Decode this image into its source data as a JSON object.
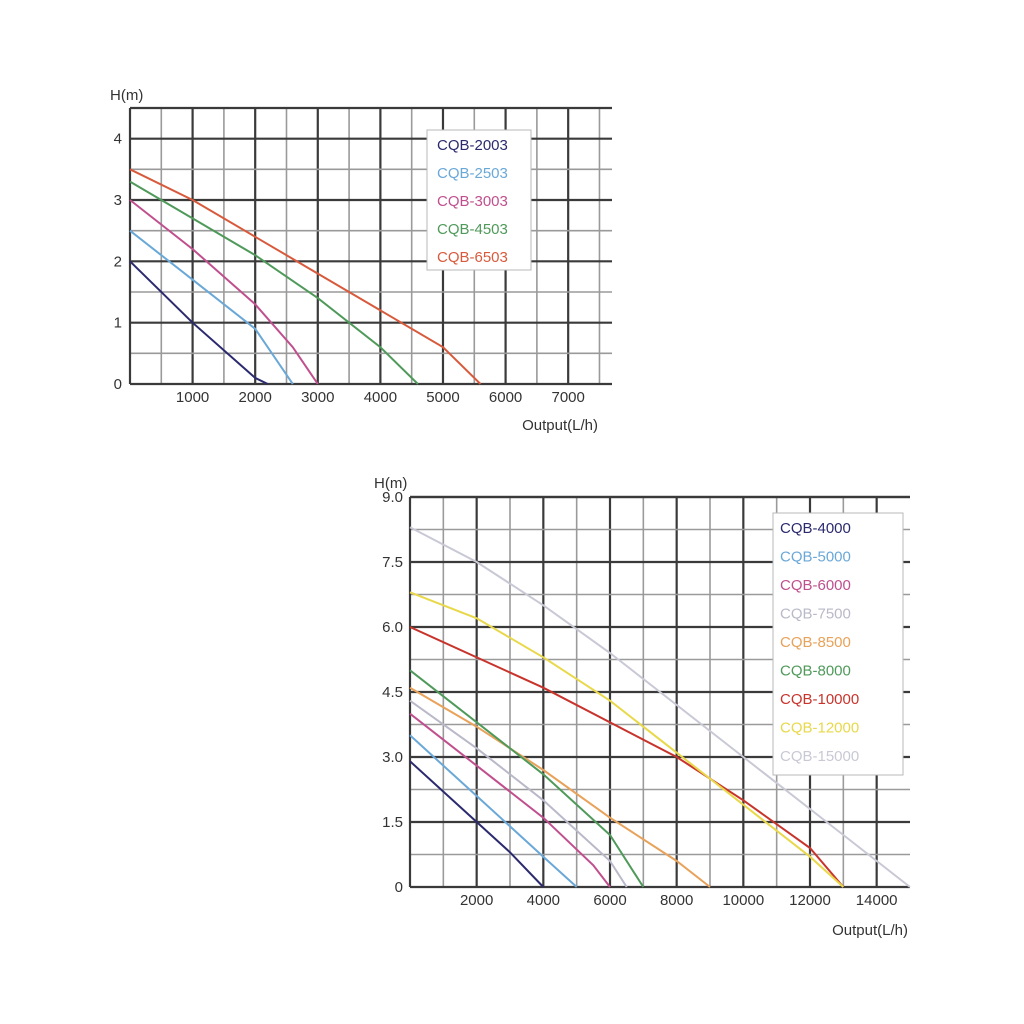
{
  "chart_data": [
    {
      "type": "line",
      "ylabel": "H(m)",
      "xlabel": "Output(L/h)",
      "xlim": [
        0,
        7700
      ],
      "ylim": [
        0,
        4.5
      ],
      "xticks": [
        1000,
        2000,
        3000,
        4000,
        5000,
        6000,
        7000
      ],
      "xtick_labels": [
        "1000",
        "2000",
        "3000",
        "4000",
        "5000",
        "6000",
        "7000"
      ],
      "yticks": [
        0,
        1,
        2,
        3,
        4
      ],
      "ytick_labels": [
        "0",
        "1",
        "2",
        "3",
        "4"
      ],
      "grid": true,
      "legend_position": "top-right",
      "series": [
        {
          "name": "CQB-2003",
          "color": "#2b2a6e",
          "x": [
            0,
            1000,
            2000,
            2200
          ],
          "y": [
            2.0,
            1.0,
            0.1,
            0
          ]
        },
        {
          "name": "CQB-2503",
          "color": "#6aa8d8",
          "x": [
            0,
            1000,
            2000,
            2600
          ],
          "y": [
            2.5,
            1.7,
            0.9,
            0
          ]
        },
        {
          "name": "CQB-3003",
          "color": "#c04f8e",
          "x": [
            0,
            1000,
            2000,
            2600,
            3000
          ],
          "y": [
            3.0,
            2.2,
            1.3,
            0.6,
            0
          ]
        },
        {
          "name": "CQB-4503",
          "color": "#4f9a5a",
          "x": [
            0,
            1000,
            2000,
            3000,
            4000,
            4600
          ],
          "y": [
            3.3,
            2.7,
            2.1,
            1.4,
            0.6,
            0
          ]
        },
        {
          "name": "CQB-6503",
          "color": "#d85a3c",
          "x": [
            0,
            1000,
            2000,
            3000,
            4000,
            5000,
            5600
          ],
          "y": [
            3.5,
            3.0,
            2.4,
            1.8,
            1.2,
            0.6,
            0
          ]
        }
      ]
    },
    {
      "type": "line",
      "ylabel": "H(m)",
      "xlabel": "Output(L/h)",
      "xlim": [
        0,
        15000
      ],
      "ylim": [
        0,
        9.0
      ],
      "xticks": [
        2000,
        4000,
        6000,
        8000,
        10000,
        12000,
        14000
      ],
      "xtick_labels": [
        "2000",
        "4000",
        "6000",
        "8000",
        "10000",
        "12000",
        "14000"
      ],
      "yticks": [
        0,
        1.5,
        3.0,
        4.5,
        6.0,
        7.5,
        9.0
      ],
      "ytick_labels": [
        "0",
        "1.5",
        "3.0",
        "4.5",
        "6.0",
        "7.5",
        "9.0"
      ],
      "grid": true,
      "legend_position": "top-right",
      "series": [
        {
          "name": "CQB-4000",
          "color": "#2b2a6e",
          "x": [
            0,
            2000,
            3000,
            4000
          ],
          "y": [
            2.9,
            1.5,
            0.8,
            0
          ]
        },
        {
          "name": "CQB-5000",
          "color": "#6aa8d8",
          "x": [
            0,
            2000,
            4000,
            5000
          ],
          "y": [
            3.5,
            2.1,
            0.7,
            0
          ]
        },
        {
          "name": "CQB-6000",
          "color": "#c04f8e",
          "x": [
            0,
            2000,
            4000,
            5500,
            6000
          ],
          "y": [
            4.0,
            2.8,
            1.6,
            0.5,
            0
          ]
        },
        {
          "name": "CQB-7500",
          "color": "#b9b9c9",
          "x": [
            0,
            2000,
            4000,
            6000,
            6500
          ],
          "y": [
            4.3,
            3.2,
            2.0,
            0.6,
            0
          ]
        },
        {
          "name": "CQB-8500",
          "color": "#e8a25a",
          "x": [
            0,
            2000,
            4000,
            6000,
            8000,
            9000
          ],
          "y": [
            4.6,
            3.7,
            2.7,
            1.6,
            0.6,
            0
          ]
        },
        {
          "name": "CQB-8000",
          "color": "#4f9a5a",
          "x": [
            0,
            2000,
            4000,
            6000,
            7000
          ],
          "y": [
            5.0,
            3.8,
            2.6,
            1.2,
            0
          ]
        },
        {
          "name": "CQB-10000",
          "color": "#c8342c",
          "x": [
            0,
            4000,
            8000,
            10000,
            12000,
            13000
          ],
          "y": [
            6.0,
            4.6,
            3.0,
            2.0,
            0.9,
            0
          ]
        },
        {
          "name": "CQB-12000",
          "color": "#e8d84a",
          "x": [
            0,
            2000,
            4000,
            6000,
            8000,
            10000,
            12000,
            13000
          ],
          "y": [
            6.8,
            6.2,
            5.3,
            4.3,
            3.1,
            1.9,
            0.7,
            0
          ]
        },
        {
          "name": "CQB-15000",
          "color": "#c9c9d6",
          "x": [
            0,
            2000,
            4000,
            6000,
            8000,
            10000,
            12000,
            14000,
            15000
          ],
          "y": [
            8.3,
            7.5,
            6.5,
            5.4,
            4.2,
            3.0,
            1.8,
            0.6,
            0
          ]
        }
      ]
    }
  ]
}
